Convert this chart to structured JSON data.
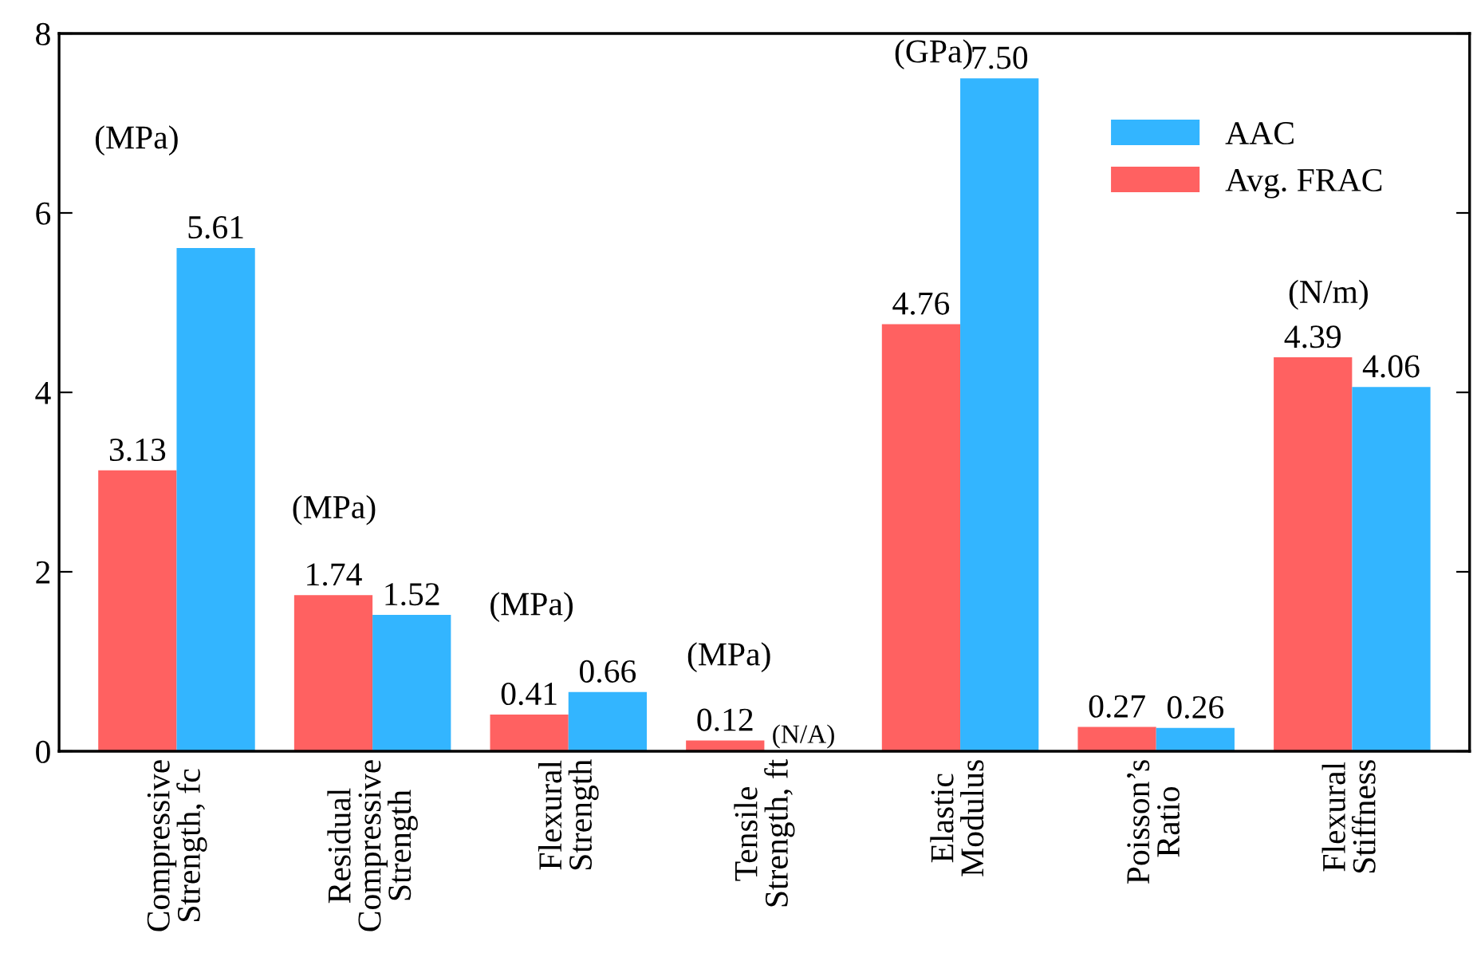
{
  "chart_data": {
    "type": "bar",
    "categories": [
      "Compressive\nStrength, fc",
      "Residual\nCompressive\nStrength",
      "Flexural\nStrength",
      "Tensile\nStrength, ft",
      "Elastic\nModulus",
      "Poisson’s\nRatio",
      "Flexural\nStiffness"
    ],
    "series": [
      {
        "name": "Avg. FRAC",
        "color": "#ff6161",
        "values": [
          3.13,
          1.74,
          0.41,
          0.12,
          4.76,
          0.27,
          4.39
        ],
        "value_labels": [
          "3.13",
          "1.74",
          "0.41",
          "0.12",
          "4.76",
          "0.27",
          "4.39"
        ]
      },
      {
        "name": "AAC",
        "color": "#33b5ff",
        "values": [
          5.61,
          1.52,
          0.66,
          null,
          7.5,
          0.26,
          4.06
        ],
        "value_labels": [
          "5.61",
          "1.52",
          "0.66",
          "(N/A)",
          "7.50",
          "0.26",
          "4.06"
        ]
      }
    ],
    "ylim": [
      0,
      8
    ],
    "yticks": [
      0,
      2,
      4,
      6,
      8
    ],
    "grid": false,
    "legend": "top right",
    "annotations": [
      "(MPa)",
      "(MPa)",
      "(MPa)",
      "(MPa)",
      "(GPa)",
      "(N/m)"
    ]
  }
}
